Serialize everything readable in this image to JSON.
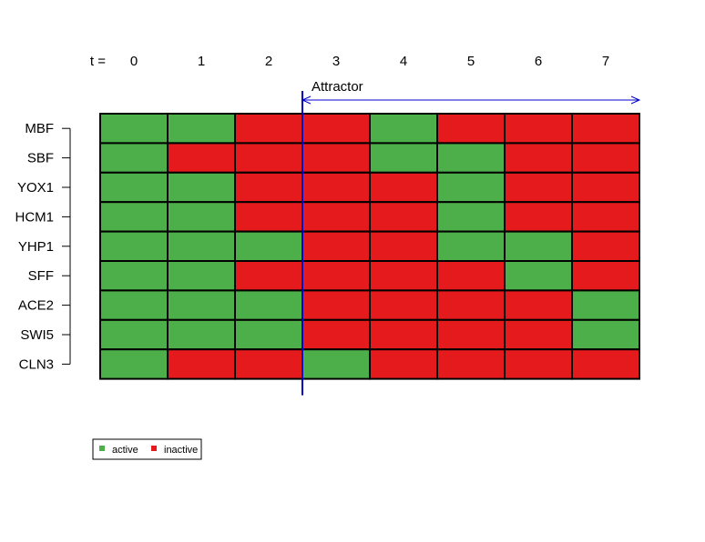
{
  "chart_data": {
    "type": "heatmap",
    "time_prefix": "t =",
    "time_steps": [
      "0",
      "1",
      "2",
      "3",
      "4",
      "5",
      "6",
      "7"
    ],
    "genes": [
      "MBF",
      "SBF",
      "YOX1",
      "HCM1",
      "YHP1",
      "SFF",
      "ACE2",
      "SWI5",
      "CLN3"
    ],
    "states": [
      [
        1,
        1,
        0,
        0,
        1,
        0,
        0,
        0
      ],
      [
        1,
        0,
        0,
        0,
        1,
        1,
        0,
        0
      ],
      [
        1,
        1,
        0,
        0,
        0,
        1,
        0,
        0
      ],
      [
        1,
        1,
        0,
        0,
        0,
        1,
        0,
        0
      ],
      [
        1,
        1,
        1,
        0,
        0,
        1,
        1,
        0
      ],
      [
        1,
        1,
        0,
        0,
        0,
        0,
        1,
        0
      ],
      [
        1,
        1,
        1,
        0,
        0,
        0,
        0,
        1
      ],
      [
        1,
        1,
        1,
        0,
        0,
        0,
        0,
        1
      ],
      [
        1,
        0,
        0,
        1,
        0,
        0,
        0,
        0
      ]
    ],
    "attractor": {
      "label": "Attractor",
      "start_step": 3,
      "end_step": 7
    },
    "legend": {
      "placement": "bottom-left",
      "entries": [
        {
          "label": "active",
          "value": 1
        },
        {
          "label": "inactive",
          "value": 0
        }
      ]
    },
    "colors": {
      "active": "#4DAF4A",
      "inactive": "#E41A1C",
      "attractor": "#0000CD",
      "grid": "#000000"
    }
  }
}
